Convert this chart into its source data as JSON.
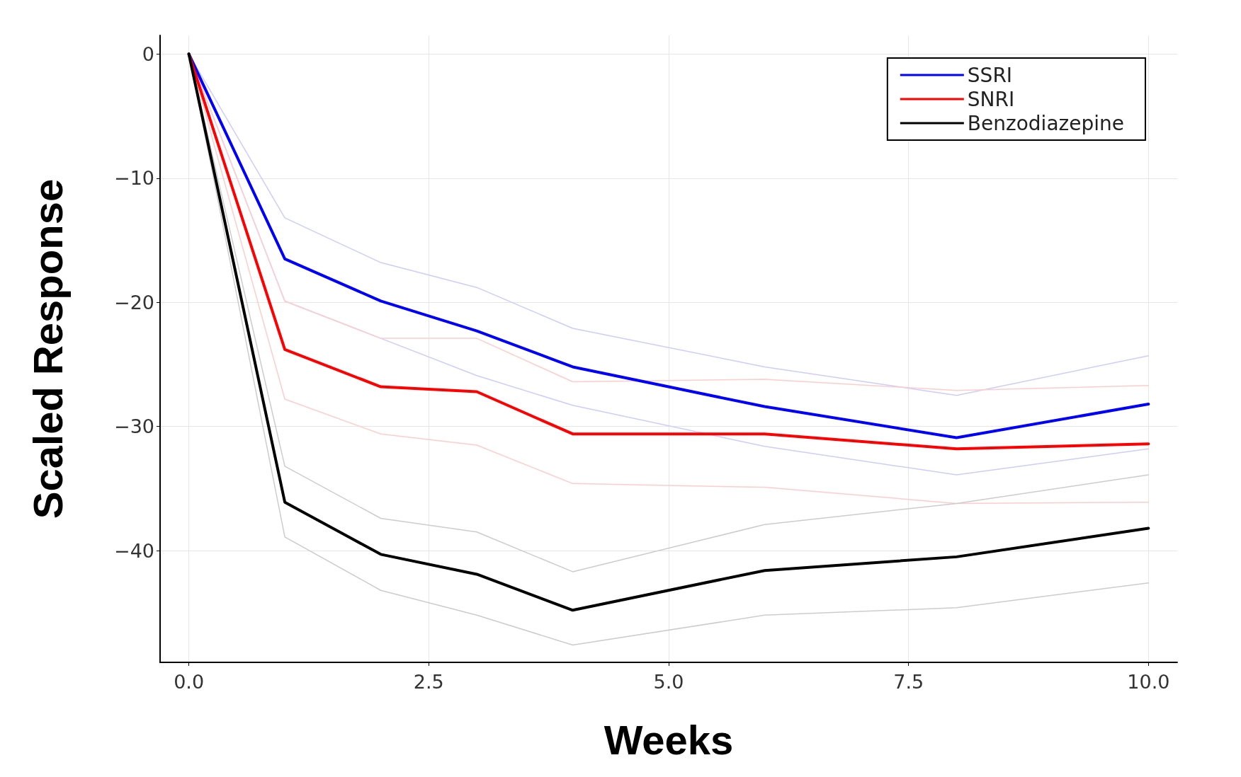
{
  "chart_data": {
    "type": "line",
    "xlabel": "Weeks",
    "ylabel": "Scaled Response",
    "x": [
      0,
      1,
      2,
      3,
      4,
      6,
      8,
      10
    ],
    "series": [
      {
        "color": "#ccccff",
        "values": [
          0,
          -19.9,
          -22.9,
          -25.9,
          -28.3,
          -31.6,
          -33.9,
          -31.8
        ]
      },
      {
        "color": "#ccccff",
        "values": [
          0,
          -13.2,
          -16.8,
          -18.8,
          -22.1,
          -25.2,
          -27.5,
          -24.3
        ]
      },
      {
        "color": "#ffcccc",
        "values": [
          0,
          -27.8,
          -30.6,
          -31.5,
          -34.6,
          -34.9,
          -36.2,
          -36.1
        ]
      },
      {
        "color": "#ffcccc",
        "values": [
          0,
          -19.9,
          -22.9,
          -22.9,
          -26.4,
          -26.2,
          -27.1,
          -26.7
        ]
      },
      {
        "color": "#cccccc",
        "values": [
          0,
          -38.9,
          -43.2,
          -45.2,
          -47.6,
          -45.2,
          -44.6,
          -42.6
        ]
      },
      {
        "color": "#cccccc",
        "values": [
          0,
          -33.2,
          -37.4,
          -38.5,
          -41.7,
          -37.9,
          -36.2,
          -33.9
        ]
      },
      {
        "name": "SSRI",
        "color": "#0000ff",
        "values": [
          0,
          -16.5,
          -19.9,
          -22.3,
          -25.2,
          -28.4,
          -30.9,
          -28.2
        ]
      },
      {
        "name": "SNRI",
        "color": "#ff0000",
        "values": [
          0,
          -23.8,
          -26.8,
          -27.2,
          -30.6,
          -30.6,
          -31.8,
          -31.4
        ]
      },
      {
        "name": "Benzodiazepine",
        "color": "#000000",
        "values": [
          0,
          -36.1,
          -40.3,
          -41.9,
          -44.8,
          -41.6,
          -40.5,
          -38.2
        ]
      }
    ],
    "xlim": [
      -0.3,
      10.3
    ],
    "ylim": [
      -49,
      1.5
    ],
    "xticks": [
      {
        "value": 0,
        "label": "0.0"
      },
      2.5,
      {
        "value": 5,
        "label": "5.0"
      },
      7.5,
      {
        "value": 10,
        "label": "10.0"
      }
    ],
    "yticks": [
      0,
      -10,
      -20,
      -30,
      -40
    ],
    "grid": true,
    "legend": "top right",
    "marker": "none",
    "line_style": "solid"
  }
}
